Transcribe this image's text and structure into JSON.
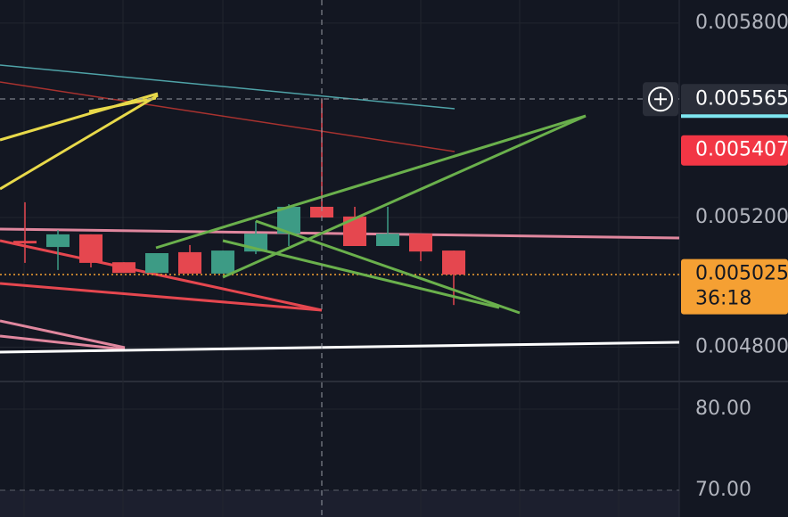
{
  "chart_data": [
    {
      "type": "candlestick",
      "categories": [
        null,
        null,
        null,
        null,
        null,
        null,
        null,
        null,
        null,
        null,
        null,
        null,
        null,
        null
      ],
      "open": [
        0.005128,
        0.005109,
        0.005148,
        0.005062,
        0.005029,
        0.005093,
        0.005027,
        0.005095,
        0.00515,
        0.005233,
        0.005203,
        0.005112,
        0.00515,
        0.005098
      ],
      "high": [
        0.005247,
        0.005161,
        0.005148,
        0.005062,
        0.00509,
        0.005115,
        0.005098,
        0.005189,
        0.005241,
        0.005565,
        0.005233,
        0.005233,
        0.00515,
        0.005098
      ],
      "low": [
        0.00506,
        0.005038,
        0.005046,
        0.005029,
        0.005029,
        0.005027,
        0.005027,
        0.005087,
        0.005112,
        0.0052,
        0.005112,
        0.005112,
        0.005065,
        0.00493
      ],
      "close": [
        0.00512,
        0.005148,
        0.00506,
        0.005029,
        0.00509,
        0.005027,
        0.005098,
        0.00515,
        0.005233,
        0.0052,
        0.005112,
        0.00515,
        0.005095,
        0.005024
      ],
      "up_color": "#3d9b85",
      "down_color": "#e5474f",
      "ylim": [
        0.004694,
        0.005871
      ],
      "yticks": [
        {
          "value": 0.0058,
          "label": "0.005800"
        },
        {
          "value": 0.0052,
          "label": "0.005200"
        },
        {
          "value": 0.0048,
          "label": "0.004800"
        }
      ],
      "grid": true,
      "price_tags": [
        {
          "value": 0.005565,
          "label": "0.005565",
          "color": "#2a2e39"
        },
        {
          "value": 0.005407,
          "label": "0.005407",
          "color": "#f23645"
        },
        {
          "value": 0.005025,
          "label": "0.005025",
          "color": "#f5a033",
          "countdown": "36:18"
        }
      ]
    },
    {
      "type": "line",
      "ylim": [
        66.7,
        83.4
      ],
      "yticks": [
        {
          "value": 80,
          "label": "80.00"
        },
        {
          "value": 70,
          "label": "70.00"
        }
      ],
      "grid": true
    }
  ]
}
